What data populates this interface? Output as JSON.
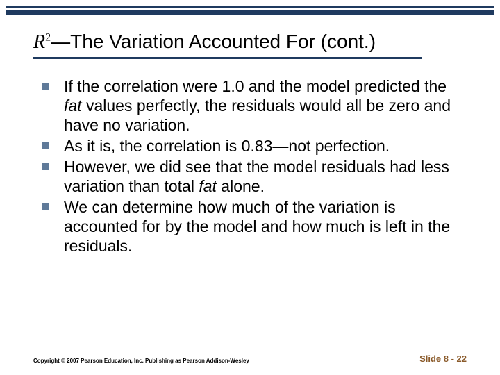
{
  "title": {
    "r_part": "R",
    "sup": "2",
    "rest": "—The Variation Accounted For (cont.)"
  },
  "bullets": [
    {
      "pre": "If the correlation were 1.0 and the model predicted the ",
      "em": "fat",
      "post": " values perfectly, the residuals would all be zero and have no variation."
    },
    {
      "pre": "As it is, the correlation is 0.83—not perfection.",
      "em": "",
      "post": ""
    },
    {
      "pre": "However, we did see that the model residuals had less variation than total ",
      "em": "fat",
      "post": " alone."
    },
    {
      "pre": "We can determine how much of the variation is accounted for by the model and how much is left in the residuals.",
      "em": "",
      "post": ""
    }
  ],
  "footer": {
    "copyright": "Copyright © 2007 Pearson Education, Inc. Publishing as Pearson Addison-Wesley",
    "slide_number": "Slide 8 - 22"
  },
  "colors": {
    "border": "#1f3a5f",
    "bullet": "#5f7a99",
    "slide_num": "#8a5a2a",
    "bg": "#ffffff"
  }
}
